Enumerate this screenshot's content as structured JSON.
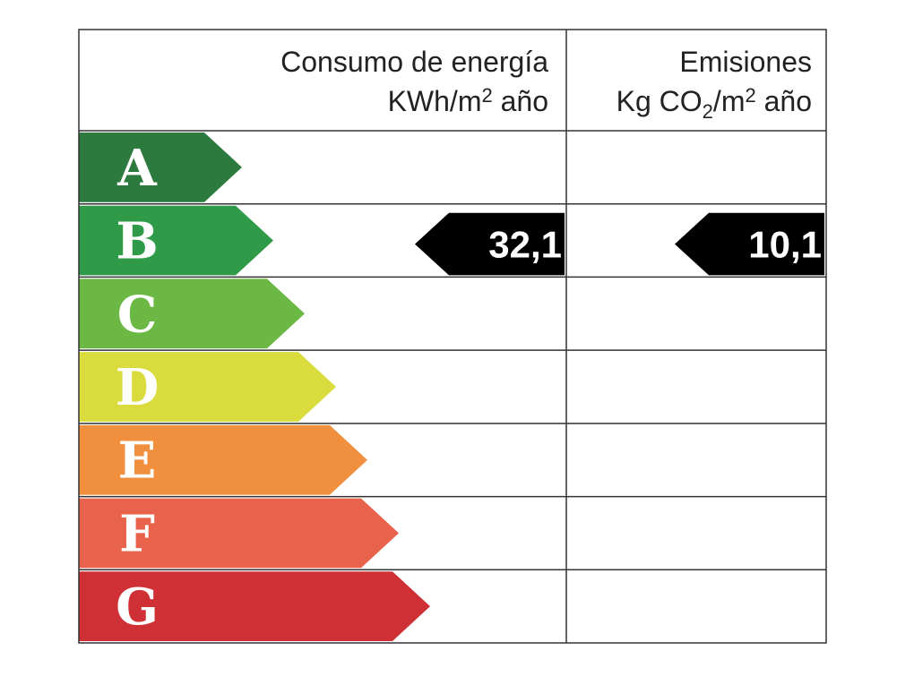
{
  "header": {
    "energy_title": "Consumo de energía",
    "energy_unit": [
      "KWh/m",
      "2",
      " año"
    ],
    "emissions_title": "Emisiones",
    "emissions_unit": [
      "Kg CO",
      "2",
      "/m",
      "2",
      " año"
    ]
  },
  "rows": [
    {
      "letter": "A",
      "color": "#2c7a3e",
      "energy": null,
      "emissions": null
    },
    {
      "letter": "B",
      "color": "#2f9a47",
      "energy": "32,1",
      "emissions": "10,1"
    },
    {
      "letter": "C",
      "color": "#6cb844",
      "energy": null,
      "emissions": null
    },
    {
      "letter": "D",
      "color": "#d9dc3c",
      "energy": null,
      "emissions": null
    },
    {
      "letter": "E",
      "color": "#f0903f",
      "energy": null,
      "emissions": null
    },
    {
      "letter": "F",
      "color": "#e9624b",
      "energy": null,
      "emissions": null
    },
    {
      "letter": "G",
      "color": "#cf3036",
      "energy": null,
      "emissions": null
    }
  ]
}
